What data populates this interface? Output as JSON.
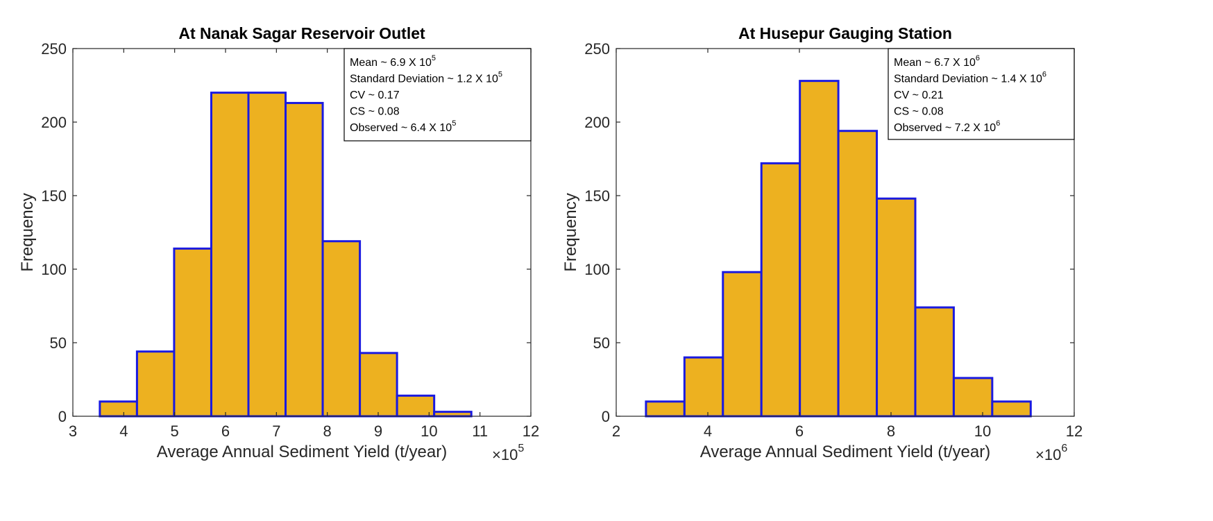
{
  "colors": {
    "bar_fill": "#EDB120",
    "bar_edge": "#1A1AE0",
    "axis": "#262626",
    "background": "#FFFFFF"
  },
  "chart_data": [
    {
      "type": "bar",
      "title": "At Nanak Sagar Reservoir Outlet",
      "xlabel": "Average Annual Sediment Yield (t/year)",
      "ylabel": "Frequency",
      "x_multiplier": {
        "prefix": "×10",
        "exponent": "5"
      },
      "xlim": [
        3,
        12
      ],
      "ylim": [
        0,
        250
      ],
      "xticks": [
        3,
        4,
        5,
        6,
        7,
        8,
        9,
        10,
        11,
        12
      ],
      "yticks": [
        0,
        50,
        100,
        150,
        200,
        250
      ],
      "bin_edges": [
        3.53,
        4.26,
        4.99,
        5.72,
        6.45,
        7.18,
        7.91,
        8.64,
        9.37,
        10.1,
        10.83
      ],
      "values": [
        10,
        44,
        114,
        220,
        220,
        213,
        119,
        43,
        14,
        3
      ],
      "grid": false,
      "legend": "none",
      "stats_box": {
        "position": "top-right",
        "lines": [
          {
            "text": "Mean ~ 6.9 X 10",
            "sup": "5"
          },
          {
            "text": "Standard Deviation ~ 1.2 X 10",
            "sup": "5"
          },
          {
            "text": "CV ~ 0.17",
            "sup": ""
          },
          {
            "text": "CS ~ 0.08",
            "sup": ""
          },
          {
            "text": "Observed ~ 6.4 X 10",
            "sup": "5"
          }
        ]
      }
    },
    {
      "type": "bar",
      "title": "At Husepur Gauging Station",
      "xlabel": "Average Annual Sediment Yield (t/year)",
      "ylabel": "Frequency",
      "x_multiplier": {
        "prefix": "×10",
        "exponent": "6"
      },
      "xlim": [
        2,
        12
      ],
      "ylim": [
        0,
        250
      ],
      "xticks": [
        2,
        4,
        6,
        8,
        10,
        12
      ],
      "yticks": [
        0,
        50,
        100,
        150,
        200,
        250
      ],
      "bin_edges": [
        2.65,
        3.49,
        4.33,
        5.17,
        6.01,
        6.85,
        7.69,
        8.53,
        9.37,
        10.21,
        11.05
      ],
      "values": [
        10,
        40,
        98,
        172,
        228,
        194,
        148,
        74,
        26,
        10
      ],
      "grid": false,
      "legend": "none",
      "stats_box": {
        "position": "top-right",
        "lines": [
          {
            "text": "Mean ~ 6.7 X 10",
            "sup": "6"
          },
          {
            "text": "Standard Deviation ~ 1.4 X 10",
            "sup": "6"
          },
          {
            "text": "CV ~ 0.21",
            "sup": ""
          },
          {
            "text": "CS ~ 0.08",
            "sup": ""
          },
          {
            "text": "Observed ~ 7.2 X 10",
            "sup": "6"
          }
        ]
      }
    }
  ]
}
